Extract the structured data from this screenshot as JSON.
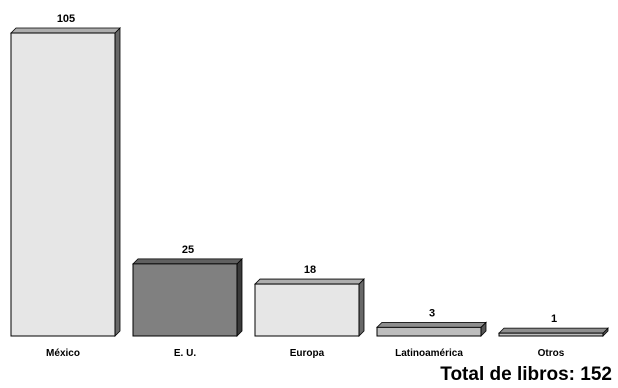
{
  "chart_data": {
    "type": "bar",
    "title": "",
    "xlabel": "",
    "ylabel": "",
    "categories": [
      "México",
      "E. U.",
      "Europa",
      "Latinoamérica",
      "Otros"
    ],
    "values": [
      105,
      25,
      18,
      3,
      1
    ],
    "data_labels": [
      "105",
      "25",
      "18",
      "3",
      "1"
    ],
    "ylim": [
      0,
      105
    ],
    "grid": false,
    "legend": "none",
    "colors": [
      "#e6e6e6",
      "#808080",
      "#e6e6e6",
      "#bdbdbd",
      "#bdbdbd"
    ],
    "edge_color": "#000000"
  },
  "footer": {
    "total_label": "Total de libros: 152"
  }
}
